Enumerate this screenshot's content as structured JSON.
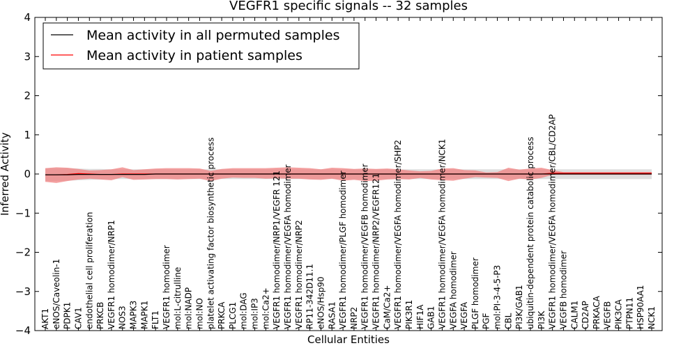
{
  "chart_data": {
    "type": "line",
    "title": "VEGFR1 specific signals -- 32 samples",
    "xlabel": "Cellular Entities",
    "ylabel": "Inferred Activity",
    "ylim": [
      -4,
      4
    ],
    "yticks": [
      -4,
      -3,
      -2,
      -1,
      0,
      1,
      2,
      3,
      4
    ],
    "ytick_labels": [
      "−4",
      "−3",
      "−2",
      "−1",
      "0",
      "1",
      "2",
      "3",
      "4"
    ],
    "grid": false,
    "legend_position": "top-left",
    "categories": [
      "AKT1",
      "eNOS/Caveolin-1",
      "PDPK1",
      "CAV1",
      "endothelial cell proliferation",
      "PRKCB",
      "VEGFR1 homodimer/NRP1",
      "NOS3",
      "MAPK3",
      "MAPK1",
      "FLT1",
      "VEGFR1 homodimer",
      "mol:L-citrulline",
      "mol:NADP",
      "mol:NO",
      "platelet activating factor biosynthetic process",
      "PRKCA",
      "PLCG1",
      "mol:DAG",
      "mol:IP3",
      "mol:Ca2+",
      "VEGFR1 homodimer/NRP1/VEGFR 121",
      "VEGFR1 homodimer/VEGFA homodimer",
      "VEGFR1 homodimer/NRP2",
      "RP11-342D11.1",
      "eNOS/Hsp90",
      "RASA1",
      "VEGFR1 homodimer/PLGF homodimer",
      "NRP2",
      "VEGFR1 homodimer/VEGFB homodimer",
      "VEGFR1 homodimer/NRP2/VEGFR121",
      "CaM/Ca2+",
      "VEGFR1 homodimer/VEGFA homodimer/SHP2",
      "PIK3R1",
      "HIF1A",
      "GAB1",
      "VEGFR1 homodimer/VEGFA homodimer/NCK1",
      "VEGFA homodimer",
      "VEGFA",
      "PLGF homodimer",
      "PGF",
      "mol:PI-3-4-5-P3",
      "CBL",
      "PI3K/GAB1",
      "ubiquitin-dependent protein catabolic process",
      "PI3K",
      "VEGFR1 homodimer/VEGFA homodimer/CBL/CD2AP",
      "VEGFB homodimer",
      "CALM1",
      "CD2AP",
      "PRKACA",
      "VEGFB",
      "PIK3CA",
      "PTPN11",
      "HSP90AA1",
      "NCK1"
    ],
    "series": [
      {
        "name": "Mean activity in all permuted samples",
        "color": "#000000",
        "values": [
          -0.02,
          -0.02,
          -0.02,
          -0.01,
          -0.01,
          -0.01,
          -0.01,
          -0.01,
          -0.01,
          -0.01,
          0,
          0,
          0,
          0,
          0,
          0,
          0,
          0,
          0,
          0,
          0,
          0,
          0,
          0,
          0,
          0,
          0,
          0,
          0,
          0,
          0,
          0,
          0,
          0,
          0,
          0,
          0,
          0,
          0,
          0,
          0,
          0,
          0,
          0,
          0,
          0,
          0,
          0,
          0,
          0,
          0,
          0,
          0,
          0,
          0,
          0
        ],
        "band_upper": [
          0.14,
          0.15,
          0.15,
          0.14,
          0.13,
          0.13,
          0.12,
          0.12,
          0.12,
          0.12,
          0.12,
          0.12,
          0.12,
          0.12,
          0.12,
          0.12,
          0.12,
          0.12,
          0.12,
          0.12,
          0.12,
          0.12,
          0.12,
          0.12,
          0.12,
          0.12,
          0.12,
          0.12,
          0.12,
          0.12,
          0.12,
          0.12,
          0.12,
          0.12,
          0.12,
          0.12,
          0.12,
          0.12,
          0.12,
          0.12,
          0.12,
          0.12,
          0.12,
          0.12,
          0.12,
          0.12,
          0.12,
          0.12,
          0.12,
          0.12,
          0.12,
          0.12,
          0.12,
          0.12,
          0.12,
          0.12
        ],
        "band_lower": [
          -0.18,
          -0.18,
          -0.17,
          -0.16,
          -0.15,
          -0.14,
          -0.13,
          -0.13,
          -0.13,
          -0.13,
          -0.13,
          -0.13,
          -0.13,
          -0.13,
          -0.13,
          -0.13,
          -0.13,
          -0.13,
          -0.13,
          -0.13,
          -0.13,
          -0.13,
          -0.13,
          -0.13,
          -0.13,
          -0.13,
          -0.13,
          -0.13,
          -0.13,
          -0.13,
          -0.13,
          -0.13,
          -0.13,
          -0.13,
          -0.13,
          -0.13,
          -0.13,
          -0.13,
          -0.13,
          -0.13,
          -0.13,
          -0.13,
          -0.13,
          -0.13,
          -0.13,
          -0.13,
          -0.13,
          -0.13,
          -0.13,
          -0.13,
          -0.13,
          -0.13,
          -0.13,
          -0.13,
          -0.13,
          -0.13
        ],
        "band_color": "#d3d3d3"
      },
      {
        "name": "Mean activity in patient samples",
        "color": "#ff0000",
        "values": [
          -0.02,
          -0.02,
          -0.01,
          0.01,
          0,
          -0.01,
          -0.01,
          0,
          0,
          0,
          0,
          0,
          0,
          0,
          0,
          0,
          0,
          0,
          0,
          0,
          0,
          0,
          0,
          0,
          0,
          0,
          0,
          0,
          0,
          0,
          0,
          0,
          0,
          0,
          0,
          0,
          0,
          0,
          0,
          0,
          0,
          0,
          0,
          0,
          0,
          0,
          0.02,
          0.02,
          0.02,
          0.02,
          0.02,
          0.02,
          0.02,
          0.02,
          0.02,
          0.02
        ],
        "band_upper": [
          0.15,
          0.17,
          0.16,
          0.13,
          0.09,
          0.1,
          0.12,
          0.17,
          0.1,
          0.12,
          0.14,
          0.15,
          0.15,
          0.15,
          0.14,
          0.08,
          0.13,
          0.15,
          0.15,
          0.15,
          0.15,
          0.16,
          0.17,
          0.16,
          0.15,
          0.12,
          0.16,
          0.15,
          0.13,
          0.14,
          0.13,
          0.14,
          0.12,
          0.09,
          0.07,
          0.08,
          0.14,
          0.15,
          0.1,
          0.09,
          0.04,
          0.05,
          0.16,
          0.11,
          0.14,
          0.16,
          0.1,
          0.05,
          0.05,
          0.05,
          0.05,
          0.05,
          0.05,
          0.05,
          0.05,
          0.05
        ],
        "band_lower": [
          -0.2,
          -0.23,
          -0.18,
          -0.14,
          -0.12,
          -0.14,
          -0.16,
          -0.08,
          -0.15,
          -0.14,
          -0.13,
          -0.13,
          -0.14,
          -0.13,
          -0.12,
          -0.18,
          -0.12,
          -0.09,
          -0.1,
          -0.1,
          -0.12,
          -0.11,
          -0.12,
          -0.12,
          -0.14,
          -0.15,
          -0.12,
          -0.17,
          -0.15,
          -0.18,
          -0.17,
          -0.14,
          -0.13,
          -0.14,
          -0.1,
          -0.14,
          -0.16,
          -0.17,
          -0.12,
          -0.08,
          -0.09,
          -0.1,
          -0.18,
          -0.12,
          -0.14,
          -0.1,
          -0.02,
          -0.02,
          -0.02,
          -0.02,
          -0.02,
          -0.02,
          -0.02,
          -0.02,
          -0.02,
          -0.02
        ],
        "band_color": "#f08080"
      }
    ]
  }
}
